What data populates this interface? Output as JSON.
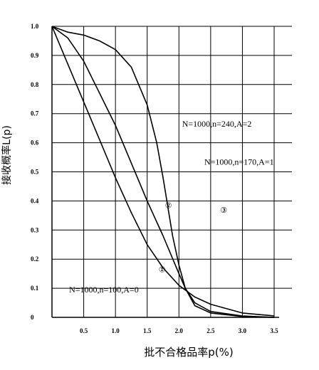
{
  "chart_data": {
    "type": "line",
    "xlabel": "批不合格品率p(%)",
    "ylabel": "接收概率L(p)",
    "xlim": [
      0,
      3.5
    ],
    "ylim": [
      0,
      1.0
    ],
    "x_ticks": [
      "0.5",
      "1.0",
      "1.5",
      "2.0",
      "2.5",
      "3.0",
      "3.5"
    ],
    "y_ticks": [
      "0",
      "0.1",
      "0.2",
      "0.3",
      "0.4",
      "0.5",
      "0.6",
      "0.7",
      "0.8",
      "0.9",
      "1.0"
    ],
    "grid": true,
    "series": [
      {
        "name": "N=1000,n=100,A=0",
        "marker": "①",
        "x": [
          0,
          0.25,
          0.5,
          0.75,
          1.0,
          1.25,
          1.5,
          1.75,
          2.0,
          2.25,
          2.5,
          3.0,
          3.5
        ],
        "y": [
          1.0,
          0.87,
          0.74,
          0.61,
          0.48,
          0.36,
          0.25,
          0.17,
          0.11,
          0.07,
          0.045,
          0.015,
          0.005
        ]
      },
      {
        "name": "N=1000,n=170,A=1",
        "marker": "②",
        "x": [
          0,
          0.25,
          0.5,
          0.75,
          1.0,
          1.25,
          1.5,
          1.75,
          2.0,
          2.1,
          2.25,
          2.5,
          3.0,
          3.5
        ],
        "y": [
          1.0,
          0.96,
          0.88,
          0.77,
          0.66,
          0.53,
          0.4,
          0.28,
          0.15,
          0.1,
          0.05,
          0.02,
          0.005,
          0.0
        ]
      },
      {
        "name": "N=1000,n=240,A=2",
        "marker": "③",
        "x": [
          0,
          0.25,
          0.5,
          0.75,
          1.0,
          1.25,
          1.5,
          1.65,
          1.75,
          1.9,
          2.0,
          2.1,
          2.25,
          2.5,
          3.0,
          3.5
        ],
        "y": [
          1.0,
          0.98,
          0.97,
          0.95,
          0.92,
          0.86,
          0.73,
          0.6,
          0.48,
          0.28,
          0.18,
          0.1,
          0.04,
          0.015,
          0.003,
          0.0
        ]
      }
    ],
    "annotations": [
      {
        "text": "N=1000,n=240,A=2",
        "series": 2
      },
      {
        "text": "N=1000,n=170,A=1",
        "series": 1
      },
      {
        "text": "N=1000,n=100,A=0",
        "series": 0
      },
      {
        "text": "②",
        "series": 1
      },
      {
        "text": "③",
        "series": 2
      },
      {
        "text": "①",
        "series": 0
      }
    ]
  }
}
